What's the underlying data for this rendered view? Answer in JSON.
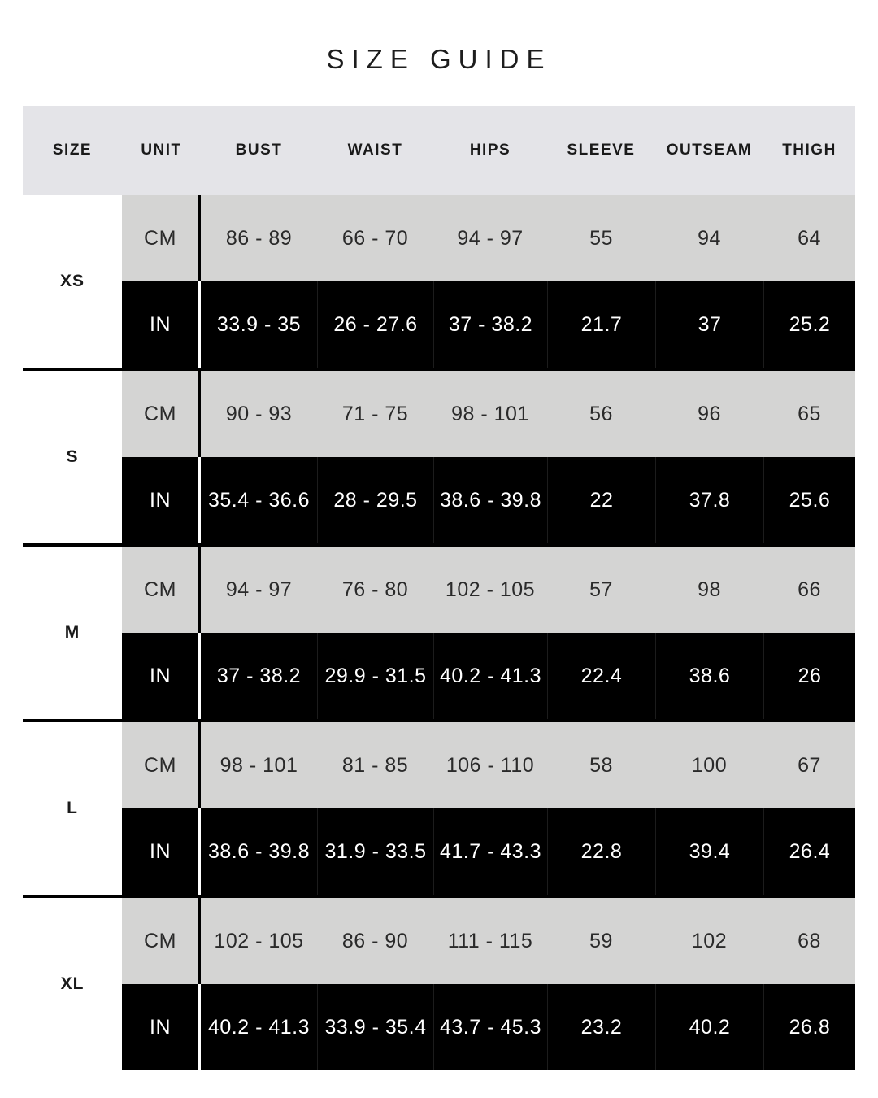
{
  "title": "SIZE GUIDE",
  "colors": {
    "header_bg": "#e4e4e8",
    "cm_row_bg": "#d4d4d3",
    "in_row_bg": "#000000",
    "in_row_text": "#ffffff",
    "text": "#1d1d1d",
    "size_column_bg": "#ffffff",
    "group_separator": "#000000"
  },
  "table": {
    "headers": [
      "SIZE",
      "UNIT",
      "BUST",
      "WAIST",
      "HIPS",
      "SLEEVE",
      "OUTSEAM",
      "THIGH"
    ],
    "unit_cm": "CM",
    "unit_in": "IN",
    "groups": [
      {
        "size": "XS",
        "cm": [
          "86 - 89",
          "66 - 70",
          "94 - 97",
          "55",
          "94",
          "64"
        ],
        "in": [
          "33.9 - 35",
          "26 - 27.6",
          "37 - 38.2",
          "21.7",
          "37",
          "25.2"
        ]
      },
      {
        "size": "S",
        "cm": [
          "90 - 93",
          "71 - 75",
          "98 - 101",
          "56",
          "96",
          "65"
        ],
        "in": [
          "35.4 - 36.6",
          "28 - 29.5",
          "38.6 - 39.8",
          "22",
          "37.8",
          "25.6"
        ]
      },
      {
        "size": "M",
        "cm": [
          "94 - 97",
          "76 - 80",
          "102 - 105",
          "57",
          "98",
          "66"
        ],
        "in": [
          "37 - 38.2",
          "29.9 - 31.5",
          "40.2 - 41.3",
          "22.4",
          "38.6",
          "26"
        ]
      },
      {
        "size": "L",
        "cm": [
          "98 - 101",
          "81 - 85",
          "106 - 110",
          "58",
          "100",
          "67"
        ],
        "in": [
          "38.6 - 39.8",
          "31.9 - 33.5",
          "41.7 - 43.3",
          "22.8",
          "39.4",
          "26.4"
        ]
      },
      {
        "size": "XL",
        "cm": [
          "102 - 105",
          "86 - 90",
          "111 - 115",
          "59",
          "102",
          "68"
        ],
        "in": [
          "40.2 - 41.3",
          "33.9 - 35.4",
          "43.7 - 45.3",
          "23.2",
          "40.2",
          "26.8"
        ]
      }
    ]
  }
}
